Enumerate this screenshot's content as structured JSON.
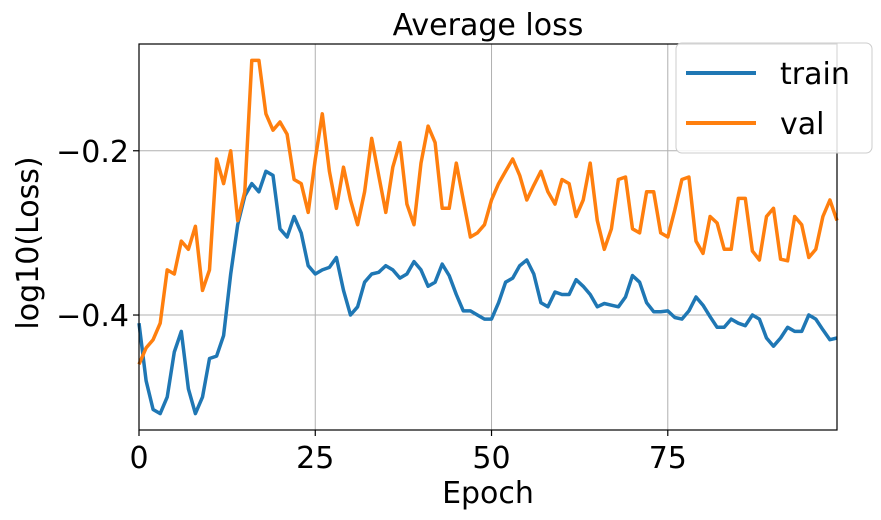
{
  "chart_data": {
    "type": "line",
    "title": "Average loss",
    "xlabel": "Epoch",
    "ylabel": "log10(Loss)",
    "xlim": [
      0,
      99
    ],
    "ylim": [
      -0.54,
      -0.07
    ],
    "xticks": [
      0,
      25,
      50,
      75
    ],
    "xtick_labels": [
      "0",
      "25",
      "50",
      "75"
    ],
    "yticks": [
      -0.4,
      -0.2
    ],
    "ytick_labels": [
      "−0.4",
      "−0.2"
    ],
    "grid": true,
    "legend_position": "top-right",
    "series": [
      {
        "name": "train",
        "color": "#1f77b4",
        "values": [
          -0.41,
          -0.48,
          -0.515,
          -0.52,
          -0.5,
          -0.445,
          -0.42,
          -0.49,
          -0.52,
          -0.5,
          -0.453,
          -0.45,
          -0.425,
          -0.35,
          -0.29,
          -0.255,
          -0.24,
          -0.25,
          -0.225,
          -0.23,
          -0.295,
          -0.305,
          -0.28,
          -0.3,
          -0.34,
          -0.35,
          -0.345,
          -0.342,
          -0.33,
          -0.37,
          -0.4,
          -0.39,
          -0.36,
          -0.35,
          -0.348,
          -0.34,
          -0.345,
          -0.355,
          -0.35,
          -0.335,
          -0.345,
          -0.365,
          -0.36,
          -0.338,
          -0.352,
          -0.375,
          -0.395,
          -0.395,
          -0.4,
          -0.405,
          -0.405,
          -0.385,
          -0.36,
          -0.355,
          -0.34,
          -0.333,
          -0.35,
          -0.385,
          -0.39,
          -0.372,
          -0.375,
          -0.375,
          -0.357,
          -0.365,
          -0.375,
          -0.39,
          -0.386,
          -0.388,
          -0.39,
          -0.378,
          -0.352,
          -0.36,
          -0.385,
          -0.396,
          -0.396,
          -0.395,
          -0.403,
          -0.405,
          -0.395,
          -0.378,
          -0.388,
          -0.402,
          -0.415,
          -0.415,
          -0.405,
          -0.41,
          -0.413,
          -0.4,
          -0.405,
          -0.428,
          -0.438,
          -0.428,
          -0.415,
          -0.42,
          -0.42,
          -0.4,
          -0.405,
          -0.418,
          -0.43,
          -0.428
        ]
      },
      {
        "name": "val",
        "color": "#ff7f0e",
        "values": [
          -0.46,
          -0.44,
          -0.43,
          -0.41,
          -0.345,
          -0.35,
          -0.31,
          -0.32,
          -0.292,
          -0.37,
          -0.345,
          -0.21,
          -0.24,
          -0.2,
          -0.285,
          -0.25,
          -0.09,
          -0.09,
          -0.155,
          -0.175,
          -0.165,
          -0.18,
          -0.235,
          -0.24,
          -0.275,
          -0.21,
          -0.155,
          -0.225,
          -0.27,
          -0.22,
          -0.26,
          -0.29,
          -0.25,
          -0.185,
          -0.23,
          -0.275,
          -0.22,
          -0.19,
          -0.265,
          -0.29,
          -0.215,
          -0.17,
          -0.19,
          -0.27,
          -0.27,
          -0.215,
          -0.26,
          -0.305,
          -0.3,
          -0.29,
          -0.26,
          -0.24,
          -0.225,
          -0.21,
          -0.23,
          -0.26,
          -0.242,
          -0.225,
          -0.25,
          -0.265,
          -0.235,
          -0.24,
          -0.28,
          -0.26,
          -0.215,
          -0.285,
          -0.32,
          -0.295,
          -0.235,
          -0.232,
          -0.295,
          -0.3,
          -0.25,
          -0.25,
          -0.3,
          -0.305,
          -0.272,
          -0.235,
          -0.232,
          -0.31,
          -0.325,
          -0.28,
          -0.288,
          -0.32,
          -0.32,
          -0.258,
          -0.258,
          -0.322,
          -0.333,
          -0.28,
          -0.27,
          -0.332,
          -0.334,
          -0.28,
          -0.29,
          -0.33,
          -0.32,
          -0.28,
          -0.26,
          -0.285
        ]
      }
    ]
  }
}
